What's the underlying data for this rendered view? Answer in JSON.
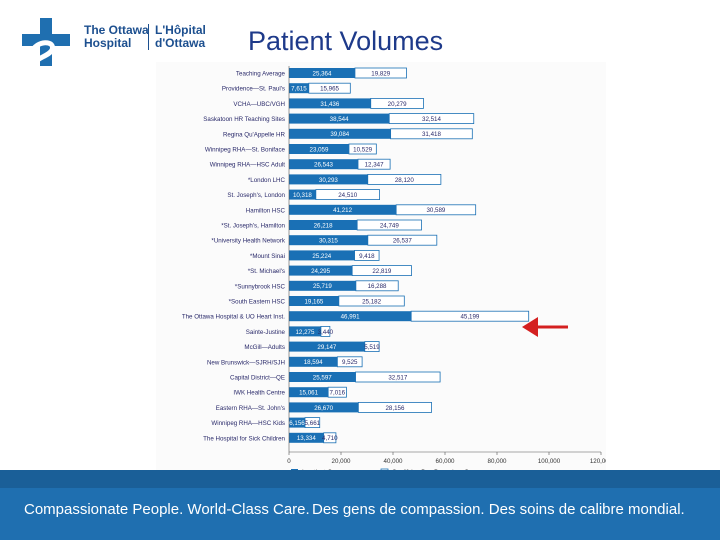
{
  "header": {
    "logo_en_line1": "The Ottawa",
    "logo_en_line2": "Hospital",
    "logo_fr_line1": "L'Hôpital",
    "logo_fr_line2": "d'Ottawa",
    "title": "Patient Volumes"
  },
  "footer": {
    "text_en": "Compassionate People. World-Class Care.",
    "text_fr": "Des gens de compassion. Des soins de calibre mondial."
  },
  "colors": {
    "accent_blue": "#1f6fb0",
    "bar_fill": "#1a70b5",
    "arrow": "#d42020"
  },
  "chart_data": {
    "type": "bar",
    "orientation": "horizontal",
    "stacked": true,
    "categories": [
      "Teaching Average",
      "Providence—St. Paul's",
      "VCHA—UBC/VGH",
      "Saskatoon HR Teaching Sites",
      "Regina Qu'Appelle HR",
      "Winnipeg RHA—St. Boniface",
      "Winnipeg RHA—HSC Adult",
      "*London LHC",
      "St. Joseph's, London",
      "Hamilton HSC",
      "*St. Joseph's, Hamilton",
      "*University Health Network",
      "*Mount Sinai",
      "*St. Michael's",
      "*Sunnybrook HSC",
      "*South Eastern HSC",
      "The Ottawa Hospital & UO Heart Inst.",
      "Sainte-Justine",
      "McGill—Adults",
      "New Brunswick—SJRH/SJH",
      "Capital District—QE",
      "IWK Health Centre",
      "Eastern RHA—St. John's",
      "Winnipeg RHA—HSC Kids",
      "The Hospital for Sick Children"
    ],
    "series": [
      {
        "name": "Inpatient Cases",
        "values": [
          25364,
          7615,
          31436,
          38544,
          39084,
          23059,
          26543,
          30293,
          10318,
          41212,
          26218,
          30315,
          25224,
          24295,
          25719,
          19165,
          46991,
          12275,
          29147,
          18594,
          25597,
          15061,
          26670,
          6156,
          13334
        ],
        "labels": [
          "25,364",
          "7,615",
          "31,436",
          "38,544",
          "39,084",
          "23,059",
          "26,543",
          "30,293",
          "10,318",
          "41,212",
          "26,218",
          "30,315",
          "25,224",
          "24,295",
          "25,719",
          "19,165",
          "46,991",
          "12,275",
          "29,147",
          "18,594",
          "25,597",
          "15,061",
          "26,670",
          "6,156",
          "13,334"
        ]
      },
      {
        "name": "Qualifying Day Procedure Cases",
        "values": [
          19829,
          15965,
          20279,
          32514,
          31418,
          10529,
          12347,
          28120,
          24510,
          30589,
          24749,
          26537,
          9418,
          22819,
          16288,
          25182,
          45199,
          3440,
          5519,
          9525,
          32517,
          7016,
          28156,
          5661,
          4710
        ],
        "labels": [
          "19,829",
          "15,965",
          "20,279",
          "32,514",
          "31,418",
          "10,529",
          "12,347",
          "28,120",
          "24,510",
          "30,589",
          "24,749",
          "26,537",
          "9,418",
          "22,819",
          "16,288",
          "25,182",
          "45,199",
          "3,440",
          "5,519",
          "9,525",
          "32,517",
          "7,016",
          "28,156",
          "5,661",
          "4,710"
        ]
      }
    ],
    "xlim": [
      0,
      120000
    ],
    "xticks": [
      0,
      20000,
      40000,
      60000,
      80000,
      100000,
      120000
    ],
    "xtick_labels": [
      "0",
      "20,000",
      "40,000",
      "60,000",
      "80,000",
      "100,000",
      "120,000"
    ],
    "grid": false,
    "legend": "bottom",
    "annotation": "red arrow pointing to The Ottawa Hospital & UO Heart Inst."
  }
}
